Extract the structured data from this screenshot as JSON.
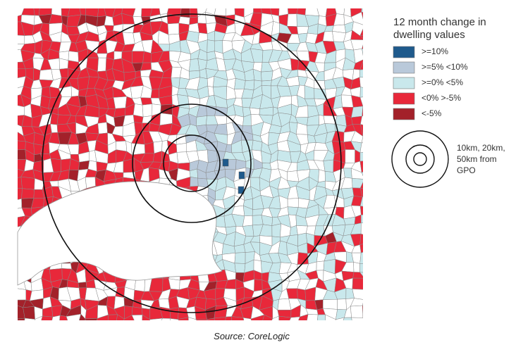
{
  "legend": {
    "title": [
      "12 month change in",
      "dwelling values"
    ],
    "items": [
      {
        "label": ">=10%",
        "color": "#1f5a8c"
      },
      {
        "label": ">=5% <10%",
        "color": "#b9c9da"
      },
      {
        "label": ">=0% <5%",
        "color": "#c9e8ec"
      },
      {
        "label": "<0% >-5%",
        "color": "#e8283a"
      },
      {
        "label": "<-5%",
        "color": "#a3212a"
      }
    ]
  },
  "rings": {
    "label": [
      "10km, 20km,",
      "50km from",
      "GPO"
    ]
  },
  "source": "Source: CoreLogic"
}
